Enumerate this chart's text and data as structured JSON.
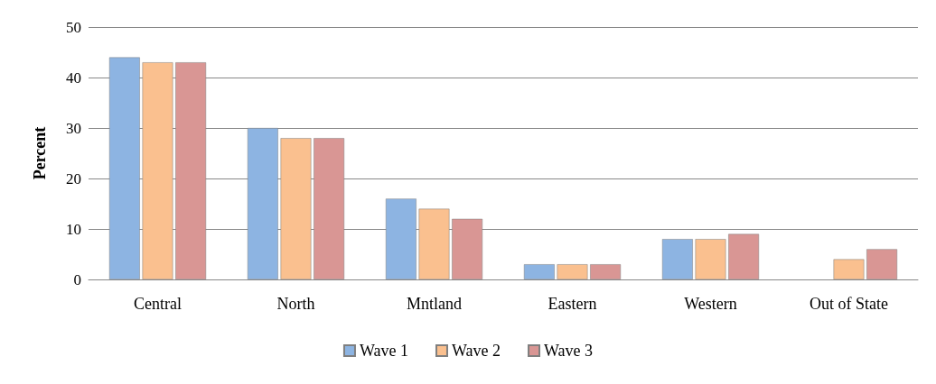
{
  "chart_data": {
    "type": "bar",
    "ylabel": "Percent",
    "categories": [
      "Central",
      "North",
      "Mntland",
      "Eastern",
      "Western",
      "Out of State"
    ],
    "series": [
      {
        "name": "Wave 1",
        "color": "#8db4e2",
        "values": [
          44,
          30,
          16,
          3,
          8,
          null
        ]
      },
      {
        "name": "Wave 2",
        "color": "#fac08f",
        "values": [
          43,
          28,
          14,
          3,
          8,
          4
        ]
      },
      {
        "name": "Wave 3",
        "color": "#d99694",
        "values": [
          43,
          28,
          12,
          3,
          9,
          6
        ]
      }
    ],
    "ylim": [
      0,
      50
    ],
    "yticks": [
      0,
      10,
      20,
      30,
      40,
      50
    ],
    "grid": "y",
    "legend": "bottom"
  }
}
